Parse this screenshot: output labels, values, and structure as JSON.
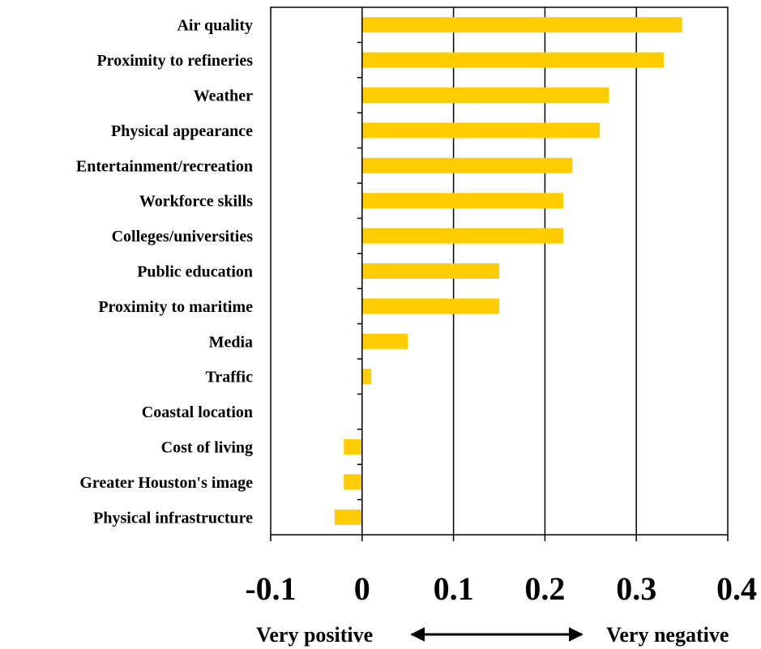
{
  "chart_data": {
    "type": "bar",
    "orientation": "horizontal",
    "categories": [
      "Air quality",
      "Proximity to refineries",
      "Weather",
      "Physical appearance",
      "Entertainment/recreation",
      "Workforce skills",
      "Colleges/universities",
      "Public education",
      "Proximity to maritime",
      "Media",
      "Traffic ",
      "Coastal location",
      "Cost of living",
      "Greater Houston's image",
      "Physical infrastructure"
    ],
    "values": [
      0.35,
      0.33,
      0.27,
      0.26,
      0.23,
      0.22,
      0.22,
      0.15,
      0.15,
      0.05,
      0.01,
      0.0,
      -0.02,
      -0.02,
      -0.03
    ],
    "xlim": [
      -0.1,
      0.4
    ],
    "xticks": [
      -0.1,
      0,
      0.1,
      0.2,
      0.3,
      0.4
    ],
    "xtick_labels": [
      "-0.1",
      "0",
      "0.1",
      "0.2",
      "0.3",
      "0.4"
    ],
    "grid": "vertical",
    "bar_color": "#FFCC00",
    "annotations": {
      "left": "Very positive",
      "right": "Very negative",
      "arrow": "double-headed"
    }
  }
}
